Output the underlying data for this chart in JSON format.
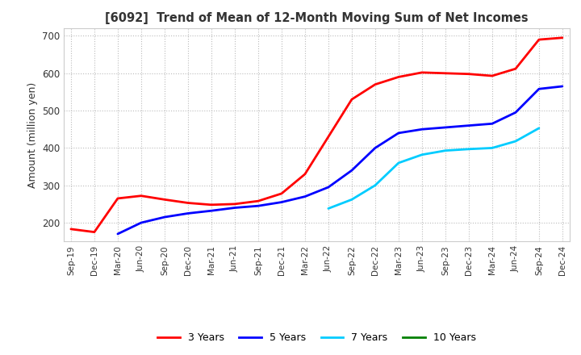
{
  "title": "[6092]  Trend of Mean of 12-Month Moving Sum of Net Incomes",
  "ylabel": "Amount (million yen)",
  "xlabels": [
    "Sep-19",
    "Dec-19",
    "Mar-20",
    "Jun-20",
    "Sep-20",
    "Dec-20",
    "Mar-21",
    "Jun-21",
    "Sep-21",
    "Dec-21",
    "Mar-22",
    "Jun-22",
    "Sep-22",
    "Dec-22",
    "Mar-23",
    "Jun-23",
    "Sep-23",
    "Dec-23",
    "Mar-24",
    "Jun-24",
    "Sep-24",
    "Dec-24"
  ],
  "ylim": [
    150,
    720
  ],
  "yticks": [
    200,
    300,
    400,
    500,
    600,
    700
  ],
  "series": {
    "3 Years": {
      "color": "#ff0000",
      "data_x": [
        0,
        1,
        2,
        3,
        4,
        5,
        6,
        7,
        8,
        9,
        10,
        11,
        12,
        13,
        14,
        15,
        16,
        17,
        18,
        19,
        20,
        21
      ],
      "data_y": [
        183,
        175,
        265,
        272,
        262,
        253,
        248,
        250,
        258,
        278,
        330,
        430,
        530,
        570,
        590,
        602,
        600,
        598,
        593,
        612,
        690,
        695
      ]
    },
    "5 Years": {
      "color": "#0000ff",
      "data_x": [
        2,
        3,
        4,
        5,
        6,
        7,
        8,
        9,
        10,
        11,
        12,
        13,
        14,
        15,
        16,
        17,
        18,
        19,
        20,
        21
      ],
      "data_y": [
        170,
        200,
        215,
        225,
        232,
        240,
        245,
        255,
        270,
        295,
        340,
        400,
        440,
        450,
        455,
        460,
        465,
        495,
        558,
        565
      ]
    },
    "7 Years": {
      "color": "#00ccff",
      "data_x": [
        11,
        12,
        13,
        14,
        15,
        16,
        17,
        18,
        19,
        20
      ],
      "data_y": [
        238,
        262,
        300,
        360,
        382,
        393,
        397,
        400,
        418,
        453
      ]
    },
    "10 Years": {
      "color": "#008000",
      "data_x": [],
      "data_y": []
    }
  },
  "legend_labels": [
    "3 Years",
    "5 Years",
    "7 Years",
    "10 Years"
  ],
  "legend_colors": [
    "#ff0000",
    "#0000ff",
    "#00ccff",
    "#008000"
  ],
  "background_color": "#ffffff",
  "grid_color": "#bbbbbb",
  "title_color": "#333333"
}
